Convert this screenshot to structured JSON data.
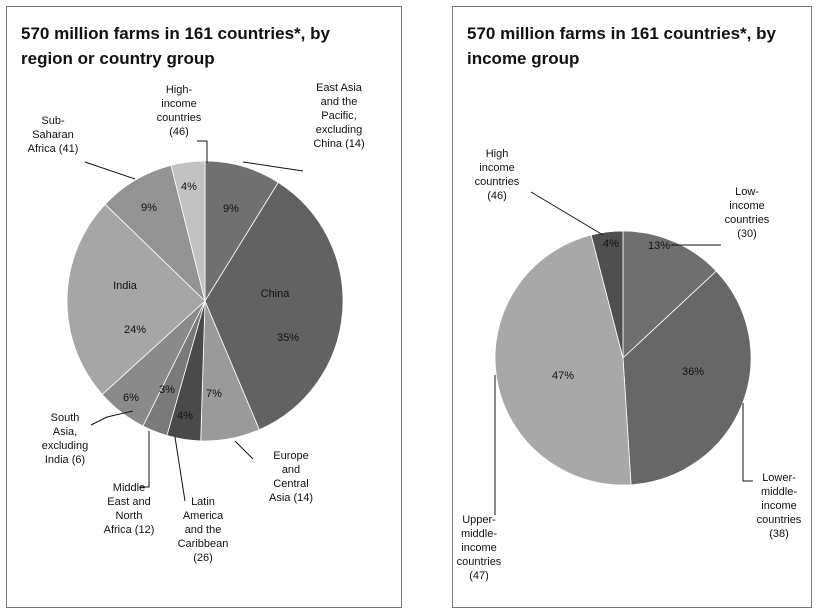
{
  "colors": {
    "dark": "#6b6b6b",
    "darker": "#5f5f5f",
    "mid": "#8e8e8e",
    "light": "#a9a9a9",
    "lighter": "#bdbdbd",
    "border": "#777777"
  },
  "chart_data": [
    {
      "type": "pie",
      "title": "570 million farms in 161 countries*, by region or country group",
      "slices": [
        {
          "name": "East Asia and the Pacific, excluding China (14)",
          "category": "East Asia and the Pacific, excluding China",
          "count": 14,
          "value": 9,
          "pct_label": "9%",
          "color": "#707070"
        },
        {
          "name": "China",
          "category": "China",
          "value": 35,
          "pct_label": "35%",
          "color": "#626262"
        },
        {
          "name": "Europe and Central Asia (14)",
          "category": "Europe and Central Asia",
          "count": 14,
          "value": 7,
          "pct_label": "7%",
          "color": "#9a9a9a"
        },
        {
          "name": "Latin America and the Caribbean (26)",
          "category": "Latin America and the Caribbean",
          "count": 26,
          "value": 4,
          "pct_label": "4%",
          "color": "#4a4a4a"
        },
        {
          "name": "Middle East and North Africa (12)",
          "category": "Middle East and North Africa",
          "count": 12,
          "value": 3,
          "pct_label": "3%",
          "color": "#7a7a7a"
        },
        {
          "name": "South Asia, excluding India (6)",
          "category": "South Asia, excluding India",
          "count": 6,
          "value": 6,
          "pct_label": "6%",
          "color": "#8a8a8a"
        },
        {
          "name": "India",
          "category": "India",
          "value": 24,
          "pct_label": "24%",
          "color": "#a6a6a6"
        },
        {
          "name": "Sub-Saharan Africa (41)",
          "category": "Sub-Saharan Africa",
          "count": 41,
          "value": 9,
          "pct_label": "9%",
          "color": "#939393"
        },
        {
          "name": "High-income countries (46)",
          "category": "High-income countries",
          "count": 46,
          "value": 4,
          "pct_label": "4%",
          "color": "#c2c2c2"
        }
      ],
      "labels": {
        "east_asia": [
          "East Asia",
          "and the",
          "Pacific,",
          "excluding",
          "China (14)"
        ],
        "china": "China",
        "india": "India",
        "europe": [
          "Europe",
          "and",
          "Central",
          "Asia (14)"
        ],
        "latam": [
          "Latin",
          "America",
          "and the",
          "Caribbean",
          "(26)"
        ],
        "mena": [
          "Middle",
          "East and",
          "North",
          "Africa (12)"
        ],
        "south_asia": [
          "South",
          "Asia,",
          "excluding",
          "India (6)"
        ],
        "ssa": [
          "Sub-",
          "Saharan",
          "Africa (41)"
        ],
        "high_income": [
          "High-",
          "income",
          "countries",
          "(46)"
        ]
      }
    },
    {
      "type": "pie",
      "title": "570 million farms in 161 countries*, by income group",
      "slices": [
        {
          "name": "Low-income countries (30)",
          "category": "Low-income countries",
          "count": 30,
          "value": 13,
          "pct_label": "13%",
          "color": "#6f6f6f"
        },
        {
          "name": "Lower-middle-income countries (38)",
          "category": "Lower-middle-income countries",
          "count": 38,
          "value": 36,
          "pct_label": "36%",
          "color": "#676767"
        },
        {
          "name": "Upper-middle-income countries (47)",
          "category": "Upper-middle-income countries",
          "count": 47,
          "value": 47,
          "pct_label": "47%",
          "color": "#a8a8a8"
        },
        {
          "name": "High income countries (46)",
          "category": "High income countries",
          "count": 46,
          "value": 4,
          "pct_label": "4%",
          "color": "#4f4f4f"
        }
      ],
      "labels": {
        "low": [
          "Low-",
          "income",
          "countries",
          "(30)"
        ],
        "lower_middle": [
          "Lower-",
          "middle-",
          "income",
          "countries",
          "(38)"
        ],
        "upper_middle": [
          "Upper-",
          "middle-",
          "income",
          "countries",
          "(47)"
        ],
        "high": [
          "High",
          "income",
          "countries",
          "(46)"
        ]
      }
    }
  ]
}
